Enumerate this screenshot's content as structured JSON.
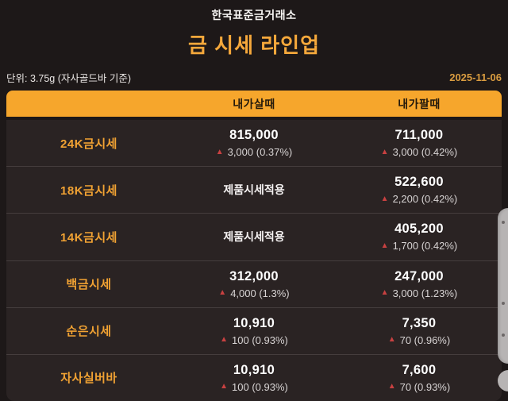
{
  "header": {
    "site_name": "한국표준금거래소",
    "page_title": "금 시세 라인업",
    "unit_note": "단위: 3.75g (자사골드바 기준)",
    "date": "2025-11-06"
  },
  "icons": {
    "up_triangle": "▲"
  },
  "colors": {
    "page_background": "#1d1818",
    "row_background": "#2a2323",
    "accent_orange": "#f6a62c",
    "title_orange": "#f5a83b",
    "label_orange": "#f1a233",
    "date_orange": "#d99c40",
    "up_red": "#c84141",
    "change_gray": "#d8d4d4"
  },
  "table": {
    "columns": [
      "내가살때",
      "내가팔때"
    ],
    "rows": [
      {
        "label": "24K금시세",
        "buy": {
          "value": "815,000",
          "change": "3,000 (0.37%)"
        },
        "sell": {
          "value": "711,000",
          "change": "3,000 (0.42%)"
        }
      },
      {
        "label": "18K금시세",
        "buy": {
          "text": "제품시세적용"
        },
        "sell": {
          "value": "522,600",
          "change": "2,200 (0.42%)"
        }
      },
      {
        "label": "14K금시세",
        "buy": {
          "text": "제품시세적용"
        },
        "sell": {
          "value": "405,200",
          "change": "1,700 (0.42%)"
        }
      },
      {
        "label": "백금시세",
        "buy": {
          "value": "312,000",
          "change": "4,000 (1.3%)"
        },
        "sell": {
          "value": "247,000",
          "change": "3,000 (1.23%)"
        }
      },
      {
        "label": "순은시세",
        "buy": {
          "value": "10,910",
          "change": "100 (0.93%)"
        },
        "sell": {
          "value": "7,350",
          "change": "70 (0.96%)"
        }
      },
      {
        "label": "자사실버바",
        "buy": {
          "value": "10,910",
          "change": "100 (0.93%)"
        },
        "sell": {
          "value": "7,600",
          "change": "70 (0.93%)"
        }
      }
    ]
  }
}
